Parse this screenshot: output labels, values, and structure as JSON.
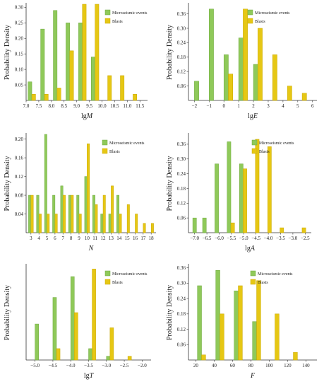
{
  "colors": {
    "microseismic": "#8fc95a",
    "microseismic_edge": "#6ea83c",
    "blasts": "#e6c714",
    "blasts_edge": "#c9a800",
    "outline": "#c9a800"
  },
  "legend": {
    "microseismic": "Microseismic events",
    "blasts": "Blasts"
  },
  "chart_data": [
    {
      "type": "bar",
      "panel": "lgM",
      "xlabel": "lgM",
      "xlabel_parts": [
        "lg",
        "M"
      ],
      "ylabel": "Probability Density",
      "xlim": [
        7.0,
        11.8
      ],
      "ylim": [
        0,
        0.31
      ],
      "xticks": [
        7.0,
        7.5,
        8.0,
        8.5,
        9.0,
        9.5,
        10.0,
        10.5,
        11.0,
        11.5
      ],
      "xtick_labels": [
        "7.0",
        "7.5",
        "8.0",
        "8.5",
        "9.0",
        "9.5",
        "10.0",
        "10.5",
        "11.0",
        "11.5"
      ],
      "yticks": [
        0.05,
        0.1,
        0.15,
        0.2,
        0.25,
        0.3
      ],
      "ytick_labels": [
        "0.05",
        "0.10",
        "0.15",
        "0.20",
        "0.25",
        "0.30"
      ],
      "bar_width": 0.15,
      "legend_position": "top-right",
      "series": [
        {
          "name": "Microseismic events",
          "x": [
            7.15,
            7.65,
            8.15,
            8.65,
            9.15,
            9.65
          ],
          "values": [
            0.06,
            0.23,
            0.29,
            0.25,
            0.25,
            0.14
          ]
        },
        {
          "name": "Blasts",
          "x": [
            7.3,
            7.8,
            8.3,
            8.8,
            9.3,
            9.8,
            10.3,
            10.8,
            11.3
          ],
          "values": [
            0.02,
            0.02,
            0.04,
            0.16,
            0.31,
            0.31,
            0.08,
            0.08,
            0.02
          ]
        }
      ]
    },
    {
      "type": "bar",
      "panel": "lgE",
      "xlabel": "lgE",
      "xlabel_parts": [
        "lg",
        "E"
      ],
      "ylabel": "Probability Density",
      "xlim": [
        -2.4,
        6.3
      ],
      "ylim": [
        0,
        0.4
      ],
      "xticks": [
        -2,
        -1,
        0,
        1,
        2,
        3,
        4,
        5,
        6
      ],
      "xtick_labels": [
        "−2",
        "−1",
        "0",
        "1",
        "2",
        "3",
        "4",
        "5",
        "6"
      ],
      "yticks": [
        0.06,
        0.12,
        0.18,
        0.24,
        0.3,
        0.36
      ],
      "ytick_labels": [
        "0.06",
        "0.12",
        "0.18",
        "0.24",
        "0.30",
        "0.36"
      ],
      "bar_width": 0.3,
      "legend_position": "top-right",
      "series": [
        {
          "name": "Microseismic events",
          "x": [
            -1.85,
            -0.85,
            0.15,
            1.15,
            2.15
          ],
          "values": [
            0.08,
            0.38,
            0.19,
            0.26,
            0.15
          ]
        },
        {
          "name": "Blasts",
          "x": [
            0.45,
            1.45,
            2.45,
            3.45,
            4.45,
            5.45
          ],
          "values": [
            0.11,
            0.38,
            0.3,
            0.19,
            0.06,
            0.03
          ]
        }
      ]
    },
    {
      "type": "bar",
      "panel": "N",
      "xlabel": "N",
      "xlabel_parts": [
        "",
        "N"
      ],
      "ylabel": "Probability Density",
      "xlim": [
        2.4,
        18.6
      ],
      "ylim": [
        0,
        0.21
      ],
      "xticks": [
        3,
        4,
        5,
        6,
        7,
        8,
        9,
        10,
        11,
        12,
        13,
        14,
        15,
        16,
        17,
        18
      ],
      "xtick_labels": [
        "3",
        "4",
        "5",
        "6",
        "7",
        "8",
        "9",
        "10",
        "11",
        "12",
        "13",
        "14",
        "15",
        "16",
        "17",
        "18"
      ],
      "yticks": [
        0.04,
        0.08,
        0.12,
        0.16,
        0.2
      ],
      "ytick_labels": [
        "0.04",
        "0.08",
        "0.12",
        "0.16",
        "0.20"
      ],
      "bar_width": 0.3,
      "legend_position": "top-right",
      "series": [
        {
          "name": "Microseismic events",
          "x": [
            2.85,
            3.85,
            4.85,
            5.85,
            6.85,
            7.85,
            8.85,
            9.85,
            10.85,
            11.85,
            12.85,
            13.85
          ],
          "values": [
            0.08,
            0.08,
            0.21,
            0.08,
            0.1,
            0.08,
            0.08,
            0.12,
            0.08,
            0.04,
            0.04,
            0.08
          ]
        },
        {
          "name": "Blasts",
          "x": [
            3.15,
            4.15,
            5.15,
            6.15,
            7.15,
            8.15,
            9.15,
            10.15,
            11.15,
            12.15,
            13.15,
            14.15,
            15.15,
            16.15,
            17.15,
            18.15
          ],
          "values": [
            0.08,
            0.04,
            0.04,
            0.04,
            0.08,
            0.08,
            0.04,
            0.19,
            0.06,
            0.08,
            0.1,
            0.04,
            0.06,
            0.04,
            0.02,
            0.02
          ]
        }
      ]
    },
    {
      "type": "bar",
      "panel": "lgA",
      "xlabel": "lgA",
      "xlabel_parts": [
        "lg",
        "A"
      ],
      "ylabel": "Probability Density",
      "xlim": [
        -7.25,
        -2.25
      ],
      "ylim": [
        0,
        0.4
      ],
      "xticks": [
        -7.0,
        -6.5,
        -6.0,
        -5.5,
        -5.0,
        -4.5,
        -4.0,
        -3.5,
        -3.0,
        -2.5
      ],
      "xtick_labels": [
        "−7.0",
        "−6.5",
        "−6.0",
        "−5.5",
        "−5.0",
        "−4.5",
        "−4.0",
        "−3.5",
        "−3.0",
        "−2.5"
      ],
      "yticks": [
        0.06,
        0.12,
        0.18,
        0.24,
        0.3,
        0.36
      ],
      "ytick_labels": [
        "0.06",
        "0.12",
        "0.18",
        "0.24",
        "0.30",
        "0.36"
      ],
      "bar_width": 0.15,
      "legend_position": "top-right",
      "series": [
        {
          "name": "Microseismic events",
          "x": [
            -7.0,
            -6.6,
            -6.1,
            -5.6,
            -5.1
          ],
          "values": [
            0.06,
            0.06,
            0.28,
            0.37,
            0.28
          ]
        },
        {
          "name": "Blasts",
          "x": [
            -5.45,
            -4.95,
            -4.45,
            -3.95,
            -3.45,
            -2.55
          ],
          "values": [
            0.04,
            0.26,
            0.38,
            0.35,
            0.02,
            0.02
          ]
        }
      ]
    },
    {
      "type": "bar",
      "panel": "lgT",
      "xlabel": "lgT",
      "xlabel_parts": [
        "lg",
        "T"
      ],
      "ylabel": "Probability Density",
      "xlim": [
        -5.25,
        -1.75
      ],
      "ylim": [
        0,
        0.5
      ],
      "xticks": [
        -5.0,
        -4.5,
        -4.0,
        -3.5,
        -3.0,
        -2.5,
        -2.0
      ],
      "xtick_labels": [
        "−5.0",
        "−4.5",
        "−4.0",
        "−3.5",
        "−3.0",
        "−2.5",
        "−2.0"
      ],
      "yticks": [],
      "ytick_labels": [],
      "bar_width": 0.1,
      "legend_position": "top-right",
      "series": [
        {
          "name": "Microseismic events",
          "x": [
            -4.95,
            -4.45,
            -3.95,
            -3.45,
            -2.95
          ],
          "values": [
            0.19,
            0.33,
            0.44,
            0.06,
            0.02
          ]
        },
        {
          "name": "Blasts",
          "x": [
            -4.35,
            -3.85,
            -3.35,
            -2.85,
            -2.35
          ],
          "values": [
            0.06,
            0.25,
            0.48,
            0.17,
            0.02
          ]
        }
      ]
    },
    {
      "type": "bar",
      "panel": "F",
      "xlabel": "F",
      "xlabel_parts": [
        "",
        "F"
      ],
      "ylabel": "Probability Density",
      "xlim": [
        12,
        152
      ],
      "ylim": [
        0,
        0.37
      ],
      "xticks": [
        20,
        40,
        60,
        80,
        100,
        120,
        140
      ],
      "xtick_labels": [
        "20",
        "40",
        "60",
        "80",
        "100",
        "120",
        "140"
      ],
      "yticks": [
        0.06,
        0.12,
        0.18,
        0.24,
        0.3,
        0.36
      ],
      "ytick_labels": [
        "0.06",
        "0.12",
        "0.18",
        "0.24",
        "0.30",
        "0.36"
      ],
      "bar_width": 4.5,
      "legend_position": "top-right",
      "series": [
        {
          "name": "Microseismic events",
          "x": [
            24,
            44,
            64,
            84
          ],
          "values": [
            0.29,
            0.35,
            0.27,
            0.15
          ]
        },
        {
          "name": "Blasts",
          "x": [
            28.5,
            48.5,
            68.5,
            88.5,
            108.5,
            128.5
          ],
          "values": [
            0.02,
            0.18,
            0.29,
            0.31,
            0.18,
            0.03
          ]
        }
      ]
    }
  ]
}
